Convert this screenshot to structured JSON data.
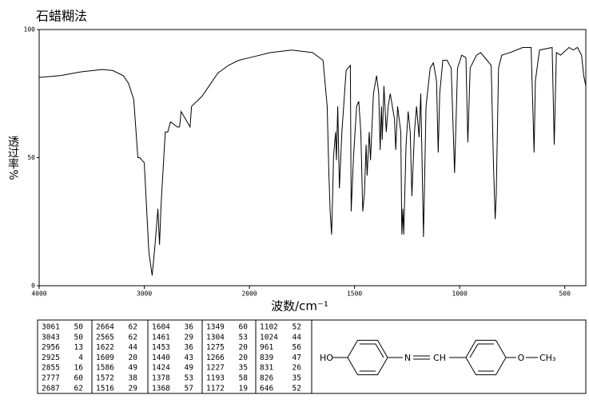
{
  "chart_data": {
    "type": "line",
    "title": "石蜡糊法",
    "x_label": "波数/cm⁻¹",
    "y_label": "透过率%",
    "xlim": [
      4000,
      400
    ],
    "xticks": [
      4000,
      3000,
      2000,
      1500,
      1000,
      500
    ],
    "ylim": [
      0,
      100
    ],
    "yticks": [
      0,
      50,
      100
    ],
    "color": "#000000",
    "x": [
      4000,
      3800,
      3600,
      3400,
      3300,
      3200,
      3150,
      3100,
      3061,
      3043,
      3000,
      2956,
      2925,
      2900,
      2870,
      2855,
      2840,
      2800,
      2777,
      2750,
      2687,
      2664,
      2650,
      2565,
      2550,
      2450,
      2400,
      2300,
      2200,
      2100,
      2000,
      1900,
      1800,
      1700,
      1650,
      1630,
      1622,
      1616,
      1609,
      1604,
      1600,
      1590,
      1586,
      1580,
      1572,
      1560,
      1540,
      1520,
      1516,
      1505,
      1490,
      1480,
      1470,
      1461,
      1453,
      1445,
      1440,
      1430,
      1424,
      1410,
      1395,
      1385,
      1378,
      1372,
      1368,
      1360,
      1349,
      1340,
      1330,
      1310,
      1304,
      1295,
      1280,
      1275,
      1270,
      1266,
      1255,
      1245,
      1235,
      1227,
      1215,
      1205,
      1193,
      1185,
      1172,
      1160,
      1140,
      1125,
      1110,
      1102,
      1095,
      1080,
      1060,
      1040,
      1024,
      1010,
      990,
      970,
      961,
      950,
      920,
      900,
      870,
      850,
      839,
      831,
      826,
      815,
      800,
      760,
      700,
      660,
      646,
      640,
      620,
      560,
      550,
      540,
      520,
      480,
      460,
      440,
      420,
      410,
      400
    ],
    "values": [
      81.3,
      82,
      83.5,
      84.4,
      84,
      82,
      79,
      72.6,
      50,
      50,
      48,
      13,
      4,
      15,
      30,
      16,
      32,
      60,
      60,
      64,
      62,
      62,
      68,
      62,
      70,
      74,
      77,
      83,
      86,
      88,
      89,
      91,
      92,
      91,
      88,
      70,
      44,
      29,
      20,
      36,
      50,
      60,
      49,
      70,
      38,
      60,
      84,
      86,
      29,
      50,
      70,
      72,
      60,
      29,
      36,
      55,
      43,
      60,
      49,
      75,
      82,
      75,
      53,
      70,
      57,
      78,
      60,
      70,
      75,
      65,
      53,
      70,
      60,
      20,
      30,
      20,
      55,
      68,
      60,
      35,
      60,
      70,
      58,
      75,
      19,
      70,
      85,
      87,
      80,
      52,
      75,
      88,
      88,
      85,
      44,
      85,
      90,
      89,
      56,
      85,
      90,
      91,
      88,
      86,
      47,
      26,
      35,
      85,
      90,
      91,
      93,
      93,
      52,
      80,
      92,
      93,
      55,
      91,
      90,
      93,
      92,
      93,
      90,
      82,
      78
    ]
  },
  "peak_table": {
    "columns": [
      [
        [
          3061,
          50
        ],
        [
          3043,
          50
        ],
        [
          2956,
          13
        ],
        [
          2925,
          4
        ],
        [
          2855,
          16
        ],
        [
          2777,
          60
        ],
        [
          2687,
          62
        ]
      ],
      [
        [
          2664,
          62
        ],
        [
          2565,
          62
        ],
        [
          1622,
          44
        ],
        [
          1609,
          20
        ],
        [
          1586,
          49
        ],
        [
          1572,
          38
        ],
        [
          1516,
          29
        ]
      ],
      [
        [
          1604,
          36
        ],
        [
          1461,
          29
        ],
        [
          1453,
          36
        ],
        [
          1440,
          43
        ],
        [
          1424,
          49
        ],
        [
          1378,
          53
        ],
        [
          1368,
          57
        ]
      ],
      [
        [
          1349,
          60
        ],
        [
          1304,
          53
        ],
        [
          1275,
          20
        ],
        [
          1266,
          20
        ],
        [
          1227,
          35
        ],
        [
          1193,
          58
        ],
        [
          1172,
          19
        ]
      ],
      [
        [
          1102,
          52
        ],
        [
          1024,
          44
        ],
        [
          961,
          56
        ],
        [
          839,
          47
        ],
        [
          831,
          26
        ],
        [
          826,
          35
        ],
        [
          646,
          52
        ]
      ]
    ]
  },
  "structure": {
    "labels": [
      "HO",
      "N",
      "CH",
      "O",
      "CH₃"
    ]
  }
}
